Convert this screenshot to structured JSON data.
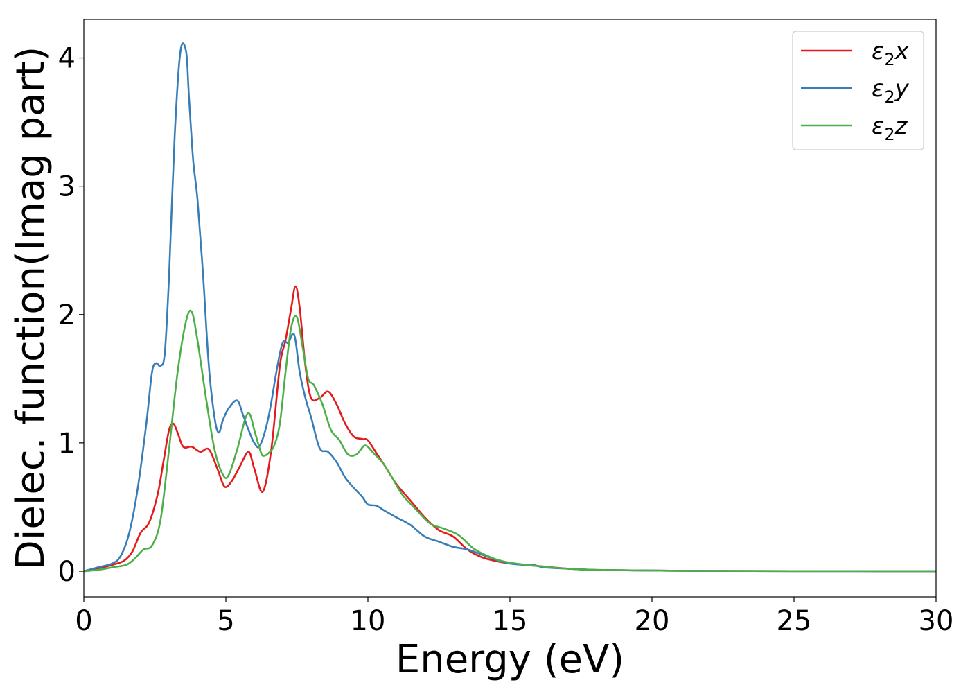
{
  "chart_data": {
    "type": "line",
    "xlabel": "Energy (eV)",
    "ylabel": "Dielec. function(Imag part)",
    "xlim": [
      0,
      30
    ],
    "ylim": [
      -0.2,
      4.3
    ],
    "xticks": [
      0,
      5,
      10,
      15,
      20,
      25,
      30
    ],
    "xtick_labels": [
      "0",
      "5",
      "10",
      "15",
      "20",
      "25",
      "30"
    ],
    "yticks": [
      0,
      1,
      2,
      3,
      4
    ],
    "ytick_labels": [
      "0",
      "1",
      "2",
      "3",
      "4"
    ],
    "grid": false,
    "legend_position": "top-right",
    "series": [
      {
        "name": "ε₂x",
        "color": "#e41a1c",
        "x": [
          0,
          0.5,
          1.0,
          1.4,
          1.7,
          2.0,
          2.3,
          2.6,
          2.8,
          3.0,
          3.15,
          3.3,
          3.5,
          3.8,
          4.1,
          4.4,
          4.7,
          4.95,
          5.2,
          5.5,
          5.8,
          6.0,
          6.3,
          6.6,
          6.9,
          7.1,
          7.3,
          7.45,
          7.6,
          7.8,
          8.0,
          8.3,
          8.6,
          8.9,
          9.2,
          9.5,
          9.8,
          10.0,
          10.3,
          10.6,
          11.0,
          11.5,
          12.0,
          12.5,
          13.0,
          13.5,
          14.0,
          14.5,
          15.0,
          15.5,
          16.0,
          17.0,
          18.0,
          20.0,
          22.0,
          25.0,
          30.0
        ],
        "y": [
          0,
          0.02,
          0.05,
          0.08,
          0.15,
          0.3,
          0.38,
          0.6,
          0.85,
          1.1,
          1.15,
          1.08,
          0.97,
          0.97,
          0.93,
          0.95,
          0.8,
          0.66,
          0.7,
          0.82,
          0.93,
          0.8,
          0.62,
          0.95,
          1.6,
          1.8,
          2.05,
          2.22,
          2.05,
          1.6,
          1.35,
          1.35,
          1.4,
          1.3,
          1.15,
          1.05,
          1.03,
          1.02,
          0.92,
          0.82,
          0.68,
          0.55,
          0.42,
          0.32,
          0.27,
          0.17,
          0.11,
          0.08,
          0.06,
          0.05,
          0.04,
          0.02,
          0.01,
          0.005,
          0.002,
          0.001,
          0.0
        ],
        "label_html": {
          "main": "ε",
          "sub": "2",
          "var": "x"
        }
      },
      {
        "name": "ε₂y",
        "color": "#377eb8",
        "x": [
          0,
          0.5,
          1.0,
          1.3,
          1.6,
          1.9,
          2.2,
          2.4,
          2.55,
          2.7,
          2.85,
          3.0,
          3.2,
          3.4,
          3.6,
          3.7,
          3.85,
          4.0,
          4.2,
          4.4,
          4.6,
          4.75,
          4.9,
          5.1,
          5.4,
          5.6,
          5.8,
          6.0,
          6.2,
          6.5,
          6.8,
          7.0,
          7.2,
          7.35,
          7.45,
          7.6,
          7.8,
          8.0,
          8.3,
          8.6,
          8.9,
          9.2,
          9.5,
          9.8,
          10.0,
          10.3,
          10.6,
          11.0,
          11.5,
          12.0,
          12.5,
          13.0,
          13.5,
          14.0,
          14.5,
          15.0,
          15.5,
          15.8,
          16.2,
          17.0,
          18.0,
          20.0,
          22.0,
          25.0,
          30.0
        ],
        "y": [
          0,
          0.03,
          0.06,
          0.12,
          0.3,
          0.65,
          1.15,
          1.55,
          1.62,
          1.6,
          1.7,
          2.3,
          3.4,
          4.05,
          4.05,
          3.7,
          3.2,
          2.9,
          2.3,
          1.6,
          1.2,
          1.08,
          1.18,
          1.27,
          1.33,
          1.22,
          1.1,
          1.0,
          0.98,
          1.2,
          1.58,
          1.78,
          1.78,
          1.85,
          1.8,
          1.55,
          1.35,
          1.2,
          0.96,
          0.93,
          0.85,
          0.73,
          0.65,
          0.58,
          0.52,
          0.51,
          0.47,
          0.42,
          0.36,
          0.27,
          0.23,
          0.19,
          0.17,
          0.13,
          0.09,
          0.06,
          0.05,
          0.05,
          0.03,
          0.02,
          0.01,
          0.005,
          0.002,
          0.001,
          0.0
        ],
        "label_html": {
          "main": "ε",
          "sub": "2",
          "var": "y"
        }
      },
      {
        "name": "ε₂z",
        "color": "#4daf4a",
        "x": [
          0,
          0.5,
          1.0,
          1.5,
          1.8,
          2.1,
          2.4,
          2.7,
          3.0,
          3.3,
          3.6,
          3.8,
          4.0,
          4.3,
          4.6,
          4.9,
          5.1,
          5.4,
          5.7,
          5.85,
          6.0,
          6.2,
          6.3,
          6.5,
          6.7,
          6.9,
          7.1,
          7.3,
          7.5,
          7.7,
          7.9,
          8.1,
          8.4,
          8.7,
          9.0,
          9.3,
          9.6,
          9.9,
          10.2,
          10.5,
          10.8,
          11.2,
          11.7,
          12.2,
          12.7,
          13.2,
          13.7,
          14.2,
          14.7,
          15.2,
          16.0,
          17.0,
          18.0,
          20.0,
          22.0,
          25.0,
          30.0
        ],
        "y": [
          0,
          0.01,
          0.03,
          0.05,
          0.1,
          0.17,
          0.2,
          0.4,
          0.95,
          1.55,
          1.95,
          2.02,
          1.8,
          1.35,
          0.95,
          0.75,
          0.75,
          0.95,
          1.2,
          1.22,
          1.1,
          0.95,
          0.9,
          0.92,
          0.98,
          1.15,
          1.55,
          1.9,
          1.98,
          1.75,
          1.5,
          1.45,
          1.3,
          1.1,
          1.02,
          0.91,
          0.91,
          0.98,
          0.92,
          0.85,
          0.75,
          0.6,
          0.48,
          0.37,
          0.33,
          0.28,
          0.18,
          0.12,
          0.08,
          0.06,
          0.04,
          0.02,
          0.01,
          0.005,
          0.002,
          0.001,
          0.0
        ],
        "label_html": {
          "main": "ε",
          "sub": "2",
          "var": "z"
        }
      }
    ]
  }
}
